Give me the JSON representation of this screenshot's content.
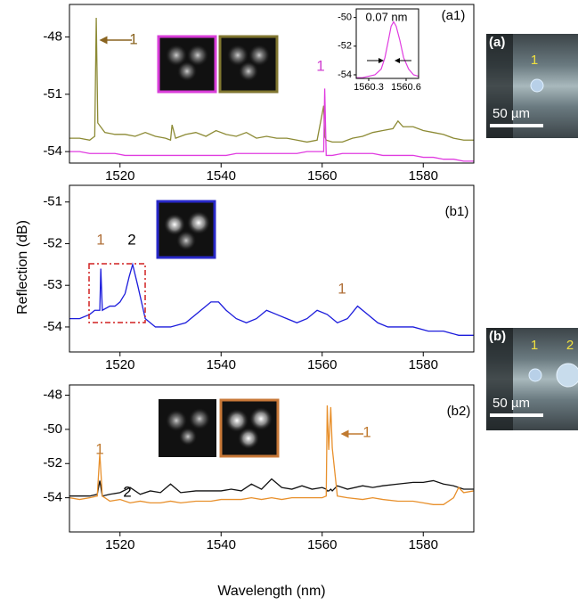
{
  "y_label": "Reflection (dB)",
  "x_label": "Wavelength (nm)",
  "photos": [
    {
      "label": "(a)",
      "markers": [
        "1"
      ],
      "scale_bar": "50 µm"
    },
    {
      "label": "(b)",
      "markers": [
        "1",
        "2"
      ],
      "scale_bar": "50 µm"
    }
  ],
  "chart_data": [
    {
      "type": "line",
      "xlim": [
        1510,
        1590
      ],
      "ylim": [
        -54.6,
        -46.3
      ],
      "xticks": [
        1520,
        1540,
        1560,
        1580
      ],
      "yticks": [
        -48,
        -51,
        -54
      ],
      "x": [
        1510,
        1512,
        1514,
        1515,
        1515.3,
        1515.6,
        1517,
        1519,
        1521,
        1523,
        1525,
        1527,
        1529,
        1530,
        1530.3,
        1531,
        1533,
        1535,
        1537,
        1539,
        1541,
        1543,
        1545,
        1547,
        1549,
        1551,
        1553,
        1555,
        1557,
        1559,
        1560.3,
        1560.5,
        1560.8,
        1562,
        1564,
        1566,
        1568,
        1570,
        1572,
        1574,
        1575,
        1576,
        1578,
        1580,
        1582,
        1584,
        1586,
        1588,
        1590
      ],
      "series": [
        {
          "color": "#8c8a34",
          "values": [
            -53.3,
            -53.3,
            -53.4,
            -53.2,
            -47.0,
            -52.5,
            -53.0,
            -53.1,
            -53.1,
            -53.2,
            -53.0,
            -53.2,
            -53.3,
            -53.4,
            -52.6,
            -53.3,
            -53.1,
            -53.0,
            -53.2,
            -52.9,
            -53.1,
            -53.2,
            -53.0,
            -53.3,
            -53.2,
            -53.3,
            -53.3,
            -53.4,
            -53.5,
            -53.4,
            -51.6,
            -53.2,
            -53.4,
            -53.5,
            -53.5,
            -53.3,
            -53.2,
            -53.0,
            -52.9,
            -52.8,
            -52.4,
            -52.7,
            -52.7,
            -52.9,
            -53.0,
            -53.1,
            -53.3,
            -53.4,
            -53.4
          ]
        },
        {
          "color": "#e03ce0",
          "values": [
            -54.0,
            -54.0,
            -54.1,
            -54.1,
            -54.1,
            -54.1,
            -54.1,
            -54.1,
            -54.2,
            -54.2,
            -54.2,
            -54.2,
            -54.2,
            -54.2,
            -54.2,
            -54.2,
            -54.2,
            -54.2,
            -54.2,
            -54.2,
            -54.2,
            -54.1,
            -54.1,
            -54.1,
            -54.1,
            -54.1,
            -54.1,
            -54.1,
            -54.0,
            -54.0,
            -54.0,
            -50.7,
            -54.2,
            -54.2,
            -54.1,
            -54.1,
            -54.1,
            -54.1,
            -54.2,
            -54.2,
            -54.2,
            -54.2,
            -54.2,
            -54.3,
            -54.3,
            -54.4,
            -54.4,
            -54.5,
            -54.5
          ]
        }
      ],
      "annotations": [
        {
          "text": "1",
          "color": "#8a6420"
        },
        {
          "text": "1",
          "color": "#d040d0"
        },
        {
          "text": "(a1)",
          "color": "#000000"
        }
      ]
    },
    {
      "type": "line",
      "xlim": [
        1560.2,
        1560.7
      ],
      "ylim": [
        -54.25,
        -49.4
      ],
      "xticks": [
        1560.3,
        1560.6
      ],
      "yticks": [
        -50,
        -52,
        -54
      ],
      "x": [
        1560.2,
        1560.25,
        1560.3,
        1560.35,
        1560.4,
        1560.43,
        1560.46,
        1560.48,
        1560.5,
        1560.52,
        1560.55,
        1560.58,
        1560.62,
        1560.66,
        1560.7
      ],
      "series": [
        {
          "color": "#e03ce0",
          "values": [
            -54.2,
            -54.2,
            -54.1,
            -54.0,
            -53.6,
            -52.8,
            -51.5,
            -50.6,
            -50.3,
            -50.6,
            -51.6,
            -52.8,
            -53.6,
            -54.0,
            -54.1
          ]
        }
      ],
      "annotations": [
        {
          "text": "0.07 nm",
          "color": "#000000"
        }
      ]
    },
    {
      "type": "line",
      "xlim": [
        1510,
        1590
      ],
      "ylim": [
        -54.6,
        -50.6
      ],
      "xticks": [
        1520,
        1540,
        1560,
        1580
      ],
      "yticks": [
        -51,
        -52,
        -53,
        -54
      ],
      "x": [
        1510,
        1512,
        1514,
        1515,
        1516,
        1516.2,
        1516.5,
        1518,
        1519,
        1520,
        1521,
        1521.8,
        1522.5,
        1523.5,
        1525,
        1527,
        1530,
        1533,
        1536,
        1538,
        1539.5,
        1541,
        1543,
        1545,
        1547,
        1549,
        1551,
        1553,
        1555,
        1557,
        1559,
        1561,
        1563,
        1565,
        1567,
        1569,
        1571,
        1573,
        1575,
        1578,
        1581,
        1584,
        1587,
        1590
      ],
      "series": [
        {
          "color": "#1c1cdc",
          "values": [
            -53.8,
            -53.8,
            -53.7,
            -53.6,
            -53.6,
            -52.6,
            -53.6,
            -53.5,
            -53.5,
            -53.4,
            -53.2,
            -52.8,
            -52.5,
            -53.0,
            -53.8,
            -54.0,
            -54.0,
            -53.9,
            -53.6,
            -53.4,
            -53.4,
            -53.6,
            -53.8,
            -53.9,
            -53.8,
            -53.6,
            -53.7,
            -53.8,
            -53.9,
            -53.8,
            -53.6,
            -53.7,
            -53.9,
            -53.8,
            -53.5,
            -53.7,
            -53.9,
            -54.0,
            -54.0,
            -54.0,
            -54.1,
            -54.1,
            -54.2,
            -54.2
          ]
        }
      ],
      "annotations": [
        {
          "text": "(b1)",
          "color": "#000000"
        },
        {
          "text": "1",
          "color": "#b0703a"
        },
        {
          "text": "2",
          "color": "#000000"
        },
        {
          "text": "1",
          "color": "#b0703a"
        }
      ]
    },
    {
      "type": "line",
      "xlim": [
        1510,
        1590
      ],
      "ylim": [
        -56,
        -47.4
      ],
      "xticks": [
        1520,
        1540,
        1560,
        1580
      ],
      "yticks": [
        -48,
        -50,
        -52,
        -54
      ],
      "x": [
        1510,
        1512,
        1514,
        1515.5,
        1516,
        1516.5,
        1518,
        1520,
        1522,
        1524,
        1526,
        1528,
        1530,
        1532,
        1535,
        1538,
        1540,
        1542,
        1544,
        1546,
        1548,
        1550,
        1552,
        1554,
        1556,
        1558,
        1560,
        1560.8,
        1561,
        1561.3,
        1561.7,
        1562,
        1563,
        1565,
        1568,
        1570,
        1572,
        1575,
        1578,
        1580,
        1582,
        1584,
        1586,
        1587,
        1588,
        1590
      ],
      "series": [
        {
          "color": "#111111",
          "values": [
            -53.9,
            -53.9,
            -53.9,
            -53.8,
            -53.0,
            -53.9,
            -53.8,
            -53.7,
            -53.4,
            -53.8,
            -53.6,
            -53.7,
            -53.2,
            -53.7,
            -53.6,
            -53.6,
            -53.6,
            -53.5,
            -53.6,
            -53.2,
            -53.5,
            -52.9,
            -53.4,
            -53.5,
            -53.3,
            -53.5,
            -53.4,
            -53.5,
            -53.6,
            -53.6,
            -53.5,
            -53.6,
            -53.3,
            -53.5,
            -53.3,
            -53.4,
            -53.3,
            -53.2,
            -53.1,
            -53.1,
            -53.0,
            -53.2,
            -53.3,
            -53.4,
            -53.5,
            -53.5
          ]
        },
        {
          "color": "#e8902c",
          "values": [
            -54.0,
            -54.1,
            -54.0,
            -53.9,
            -51.4,
            -53.9,
            -54.2,
            -54.1,
            -54.3,
            -54.2,
            -54.3,
            -54.3,
            -54.2,
            -54.3,
            -54.2,
            -54.2,
            -54.1,
            -54.1,
            -54.1,
            -54.0,
            -54.1,
            -54.0,
            -54.1,
            -54.0,
            -54.0,
            -54.0,
            -54.0,
            -53.9,
            -48.6,
            -51.2,
            -48.7,
            -51.1,
            -53.9,
            -54.0,
            -54.1,
            -54.0,
            -54.1,
            -54.2,
            -54.2,
            -54.3,
            -54.4,
            -54.4,
            -54.0,
            -53.4,
            -53.7,
            -53.6
          ]
        }
      ],
      "annotations": [
        {
          "text": "(b2)",
          "color": "#000000"
        },
        {
          "text": "1",
          "color": "#c07a30"
        },
        {
          "text": "2",
          "color": "#000000"
        },
        {
          "text": "1",
          "color": "#c07a30"
        }
      ]
    }
  ]
}
